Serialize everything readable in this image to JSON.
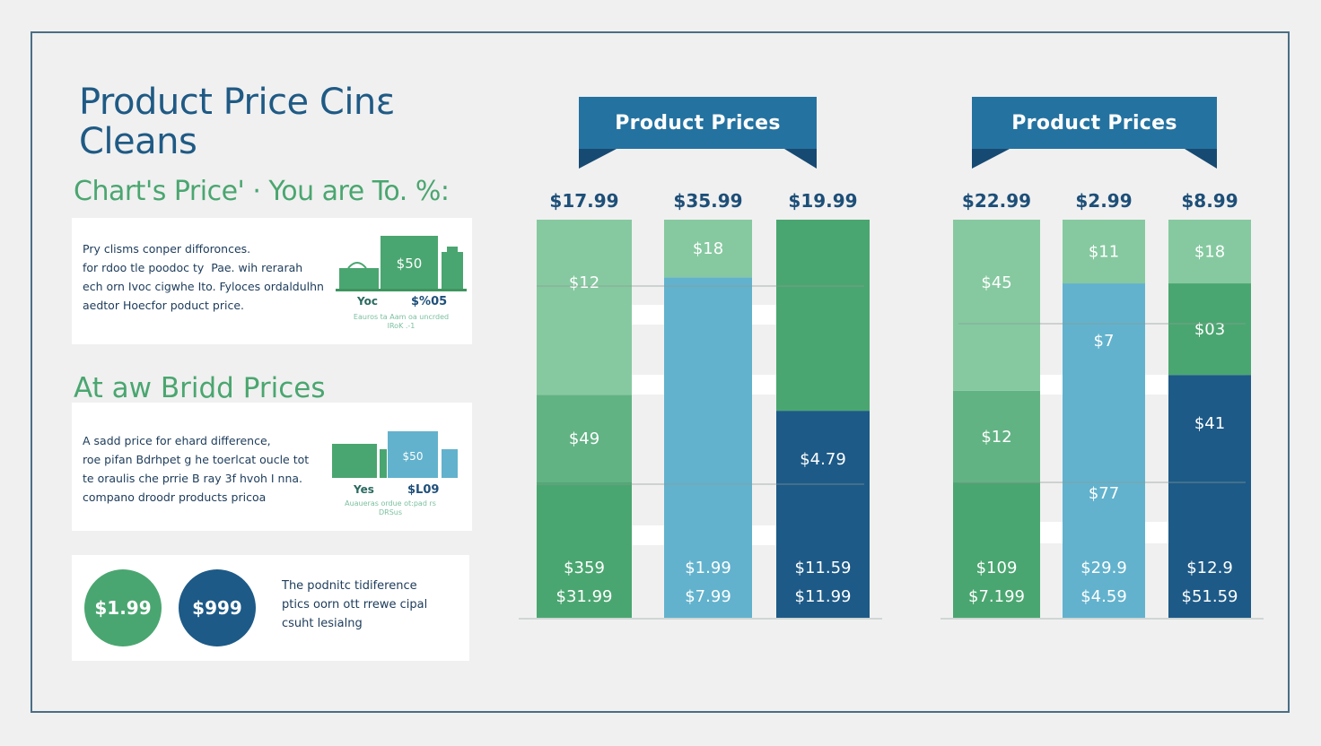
{
  "header": {
    "title_line1": "Product Price Cinɛ",
    "title_line2": "Cleans",
    "subtitle": "Chart's Price' · You are To. %:"
  },
  "card1": {
    "text": "Pry clisms conper difforonces.\nfor rdoo tle poodoc ty  Pae. wih rerarah\nech orn Ivoc cigwhe Ito. Fyloces ordaldulhn\naedtor Hoecfor poduct price.",
    "illustration_price": "$50",
    "label_yes": "Yoc",
    "label_amount": "$%05",
    "caption": "Eauros ta Aam oa uncrded\nIRoK .-1"
  },
  "section2": {
    "heading": "At aw Bridd Prices"
  },
  "card2": {
    "text": "A sadd price for ehard difference,\nroe pifan Bdrhpet g he toerlcat oucle tot\nte oraulis che prrie B ray 3f hvoh I nna.\ncompano droodr products pricoa",
    "illustration_price": "$50",
    "label_yes": "Yes",
    "label_amount": "$L09",
    "caption": "Auaueras ordue ot:pad rs\nDRSus"
  },
  "card3": {
    "circle1": "$1.99",
    "circle2": "$999",
    "text": "The podnitc tidiference\nptics oorn ott rrewe cipal\ncsuht lesialng"
  },
  "colors": {
    "light_green": "#86c9a0",
    "mid_green": "#62b384",
    "green": "#4aa670",
    "blue": "#62b2cd",
    "dark_blue": "#1d5a87",
    "title_blue": "#1f5a85",
    "ribbon": "#2472a0"
  },
  "chart_data": [
    {
      "type": "bar",
      "stacked": true,
      "title": "Product Prices",
      "categories": [
        "$17.99",
        "$35.99",
        "$19.99"
      ],
      "bars": [
        {
          "total_label": "$17.99",
          "segments": [
            {
              "color": "green",
              "value": 34,
              "labels": [
                "$359",
                "$31.99"
              ]
            },
            {
              "color": "mid_green",
              "value": 22,
              "labels": [
                "$49"
              ]
            },
            {
              "color": "light_green",
              "value": 44,
              "labels": [
                "$12"
              ]
            }
          ]
        },
        {
          "total_label": "$35.99",
          "segments": [
            {
              "color": "blue",
              "value": 85.5,
              "labels": [
                "$1.99",
                "$7.99"
              ]
            },
            {
              "color": "light_green",
              "value": 14.5,
              "labels": [
                "$18"
              ]
            }
          ]
        },
        {
          "total_label": "$19.99",
          "segments": [
            {
              "color": "dark_blue",
              "value": 52,
              "labels": [
                "$4.79",
                "$11.59",
                "$11.99"
              ]
            },
            {
              "color": "green",
              "value": 48,
              "labels": []
            }
          ]
        }
      ],
      "ylim": [
        0,
        100
      ],
      "grid": true
    },
    {
      "type": "bar",
      "stacked": true,
      "title": "Product Prices",
      "categories": [
        "$22.99",
        "$2.99",
        "$8.99"
      ],
      "bars": [
        {
          "total_label": "$22.99",
          "segments": [
            {
              "color": "green",
              "value": 34,
              "labels": [
                "$109",
                "$7.199"
              ]
            },
            {
              "color": "mid_green",
              "value": 23,
              "labels": [
                "$12"
              ]
            },
            {
              "color": "light_green",
              "value": 43,
              "labels": [
                "$45"
              ]
            }
          ]
        },
        {
          "total_label": "$2.99",
          "segments": [
            {
              "color": "blue",
              "value": 84,
              "labels": [
                "$7",
                "$77",
                "$29.9",
                "$4.59"
              ]
            },
            {
              "color": "light_green",
              "value": 16,
              "labels": [
                "$11"
              ]
            }
          ]
        },
        {
          "total_label": "$8.99",
          "segments": [
            {
              "color": "dark_blue",
              "value": 61,
              "labels": [
                "$41",
                "$12.9",
                "$51.59"
              ]
            },
            {
              "color": "green",
              "value": 23,
              "labels": [
                "$03"
              ]
            },
            {
              "color": "light_green",
              "value": 16,
              "labels": [
                "$18"
              ]
            }
          ]
        }
      ],
      "ylim": [
        0,
        100
      ],
      "grid": true
    }
  ]
}
